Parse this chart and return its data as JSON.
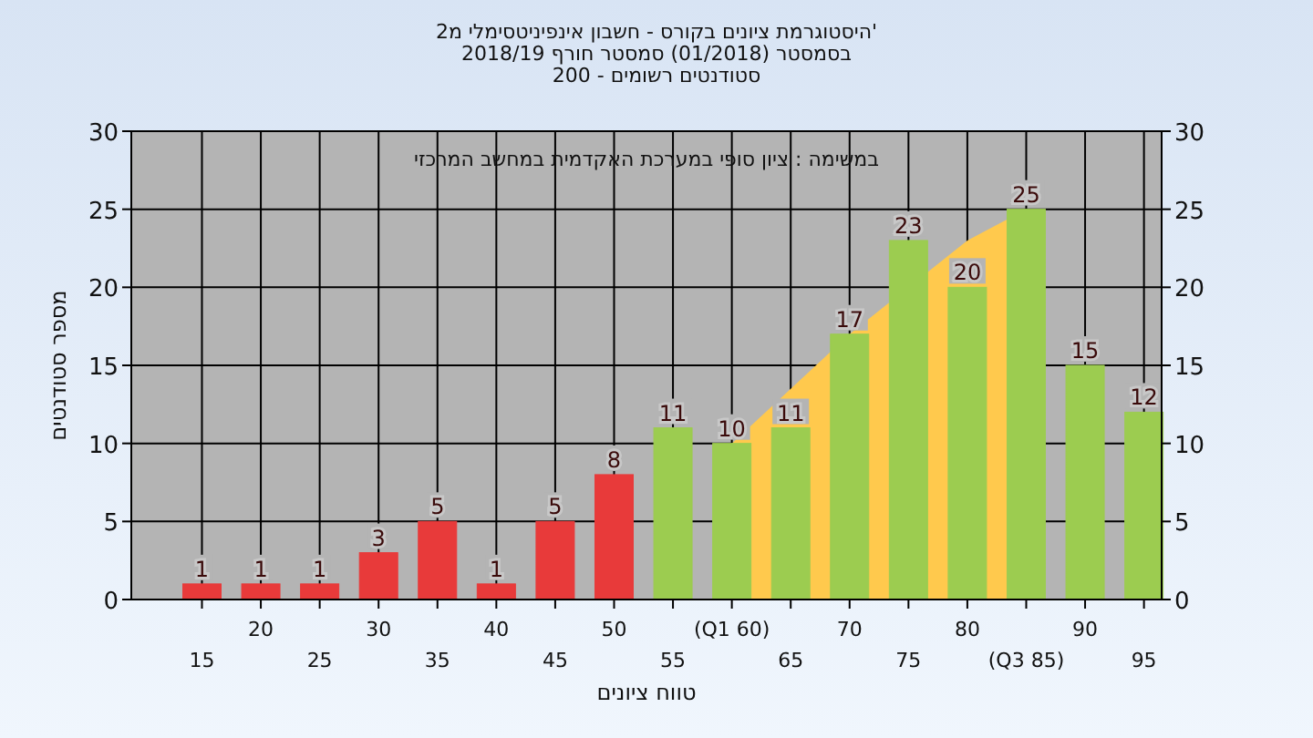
{
  "chart_data": {
    "type": "bar",
    "title": "'היסטוגרמת ציונים בקורס - חשבון אינפיניטסימלי מ2",
    "subtitle": "בסמסטר  (01/2018)  סמסטר חורף 2018/19\nסטודנטים רשומים - 200",
    "xlabel": "טווח ציונים",
    "ylabel": "מספר סטודנטים",
    "annotations": [
      "במשימה : ציון סופי במערכת האקדמית במחשב המרכזי"
    ],
    "categories": [
      "15",
      "20",
      "25",
      "30",
      "35",
      "40",
      "45",
      "50",
      "55",
      "(Q1 60)",
      "65",
      "70",
      "75",
      "80",
      "(Q3 85)",
      "90",
      "95"
    ],
    "series": [
      {
        "type": "area",
        "color": "#ffc94d",
        "values": [
          null,
          null,
          null,
          null,
          null,
          null,
          null,
          null,
          null,
          10,
          13.5,
          17,
          null,
          23,
          25,
          null,
          null
        ]
      },
      {
        "colors": [
          "#e83a3a",
          "#e83a3a",
          "#e83a3a",
          "#e83a3a",
          "#e83a3a",
          "#e83a3a",
          "#e83a3a",
          "#e83a3a",
          "#9ccc50",
          "#9ccc50",
          "#9ccc50",
          "#9ccc50",
          "#9ccc50",
          "#9ccc50",
          "#9ccc50",
          "#9ccc50",
          "#9ccc50"
        ],
        "values": [
          1,
          1,
          1,
          3,
          5,
          1,
          5,
          8,
          11,
          10,
          11,
          17,
          23,
          20,
          25,
          15,
          12
        ],
        "value_labels": [
          "1",
          "1",
          "1",
          "3",
          "5",
          "1",
          "5",
          "8",
          "11",
          "10",
          "11",
          "17",
          "23",
          "20",
          "25",
          "15",
          "12"
        ]
      }
    ],
    "ylim": [
      0,
      30
    ],
    "yticks": [
      0,
      5,
      10,
      15,
      20,
      25,
      30
    ],
    "y2lim": [
      0,
      30
    ],
    "y2ticks": [
      0,
      5,
      10,
      15,
      20,
      25,
      30
    ],
    "grid": true
  }
}
